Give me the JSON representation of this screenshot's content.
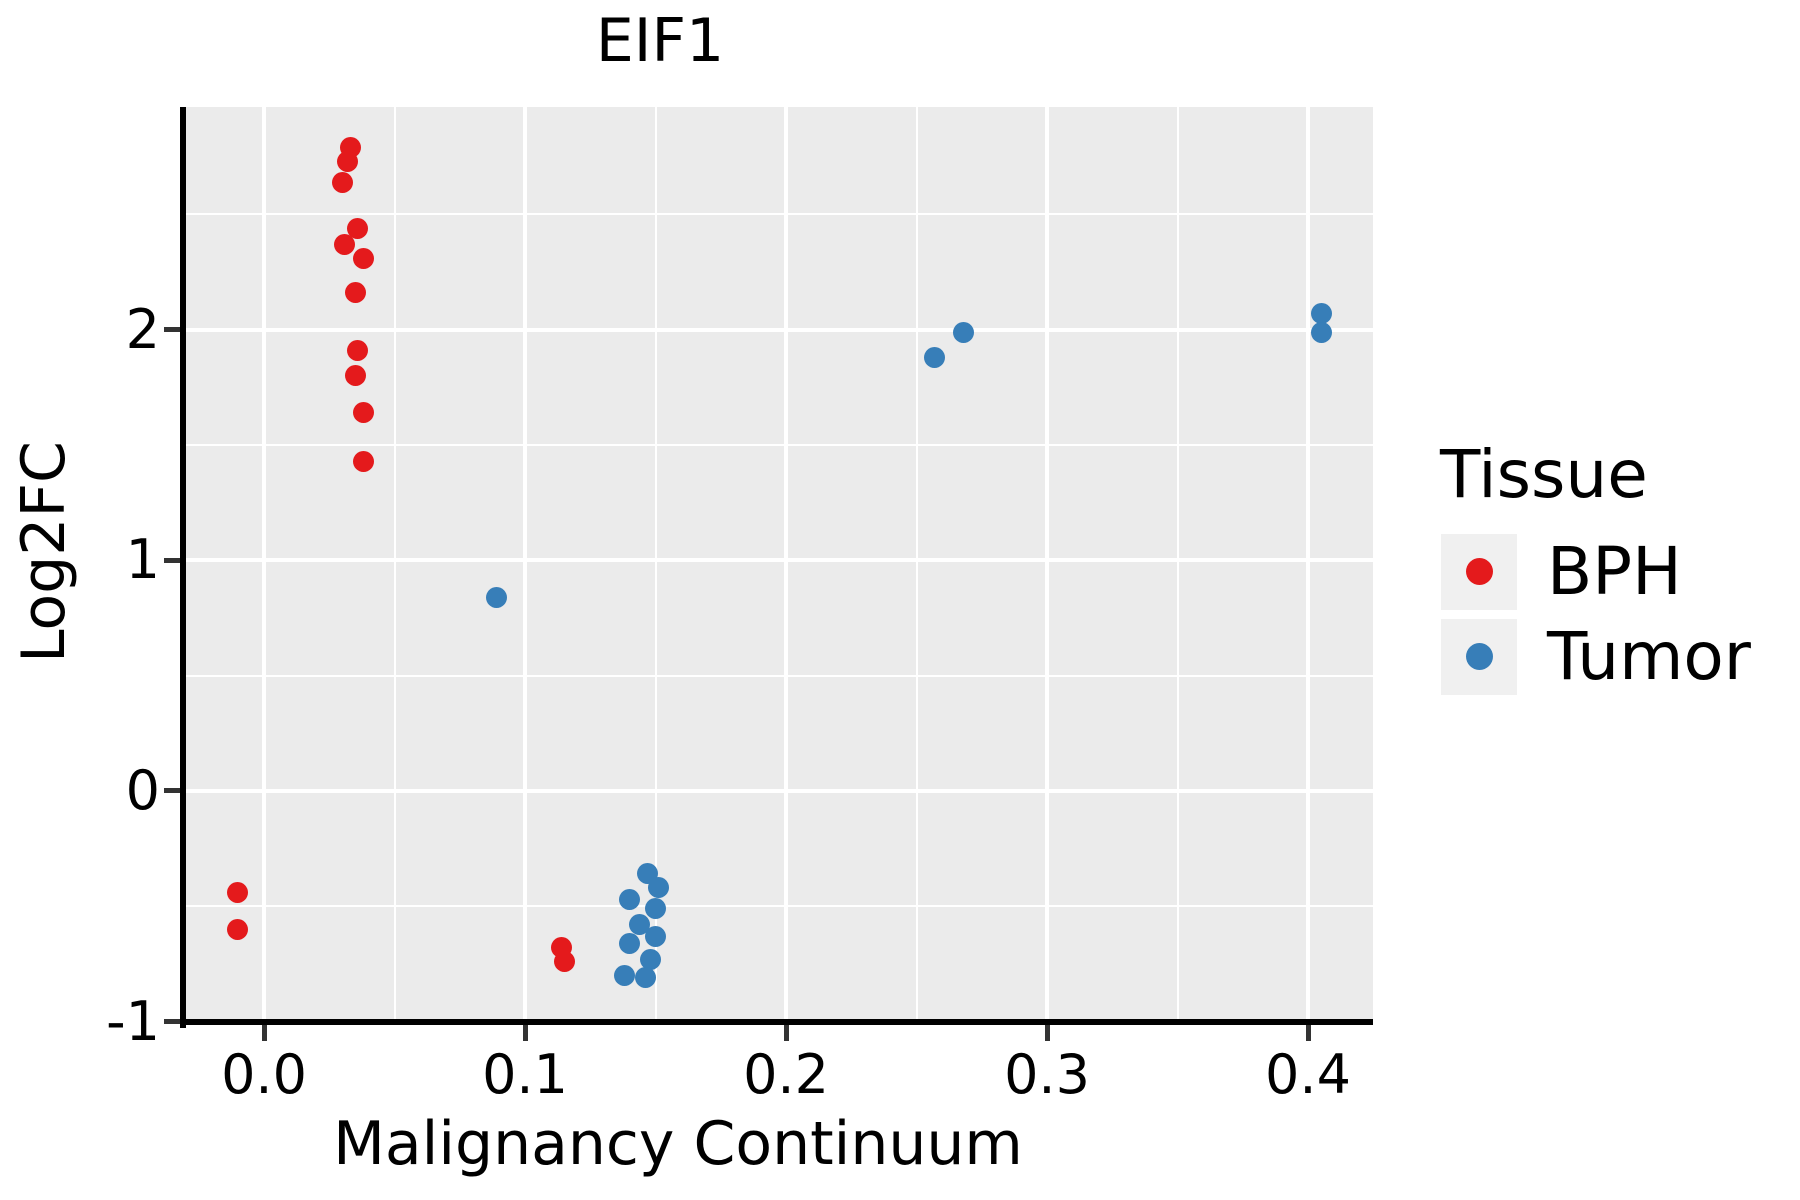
{
  "figure": {
    "title": "EIF1"
  },
  "chart_data": {
    "type": "scatter",
    "title": "EIF1",
    "xlabel": "Malignancy Continuum",
    "ylabel": "Log2FC",
    "xlim": [
      -0.0299,
      0.4249
    ],
    "ylim": [
      -1.002,
      2.966
    ],
    "grid": true,
    "legend_position": "right",
    "panel_background": "#EBEBEB",
    "gridline_color": "#FFFFFF",
    "x_ticks": {
      "values": [
        0.0,
        0.1,
        0.2,
        0.3,
        0.4
      ],
      "labels": [
        "0.0",
        "0.1",
        "0.2",
        "0.3",
        "0.4"
      ],
      "minor": [
        0.05,
        0.15,
        0.25,
        0.35
      ]
    },
    "y_ticks": {
      "values": [
        2,
        1,
        0,
        -1
      ],
      "labels": [
        "2",
        "1",
        "0",
        "-1"
      ],
      "minor": [
        2.5,
        1.5,
        0.5,
        -0.5
      ]
    },
    "series": [
      {
        "name": "BPH",
        "color": "#E41A1C",
        "points": [
          [
            0.033,
            2.79
          ],
          [
            0.032,
            2.73
          ],
          [
            0.03,
            2.64
          ],
          [
            0.036,
            2.44
          ],
          [
            0.031,
            2.37
          ],
          [
            0.038,
            2.31
          ],
          [
            0.035,
            2.16
          ],
          [
            0.036,
            1.91
          ],
          [
            0.035,
            1.8
          ],
          [
            0.038,
            1.64
          ],
          [
            0.038,
            1.43
          ],
          [
            -0.01,
            -0.44
          ],
          [
            -0.01,
            -0.6
          ],
          [
            0.114,
            -0.68
          ],
          [
            0.115,
            -0.74
          ]
        ]
      },
      {
        "name": "Tumor",
        "color": "#377EB8",
        "points": [
          [
            0.089,
            0.84
          ],
          [
            0.257,
            1.88
          ],
          [
            0.268,
            1.99
          ],
          [
            0.405,
            2.07
          ],
          [
            0.405,
            1.99
          ],
          [
            0.147,
            -0.36
          ],
          [
            0.151,
            -0.42
          ],
          [
            0.14,
            -0.47
          ],
          [
            0.15,
            -0.51
          ],
          [
            0.144,
            -0.58
          ],
          [
            0.15,
            -0.63
          ],
          [
            0.14,
            -0.66
          ],
          [
            0.148,
            -0.73
          ],
          [
            0.138,
            -0.8
          ],
          [
            0.146,
            -0.81
          ]
        ]
      }
    ]
  },
  "legend": {
    "title": "Tissue",
    "entries": [
      {
        "label": "BPH",
        "color": "#E41A1C"
      },
      {
        "label": "Tumor",
        "color": "#377EB8"
      }
    ]
  }
}
